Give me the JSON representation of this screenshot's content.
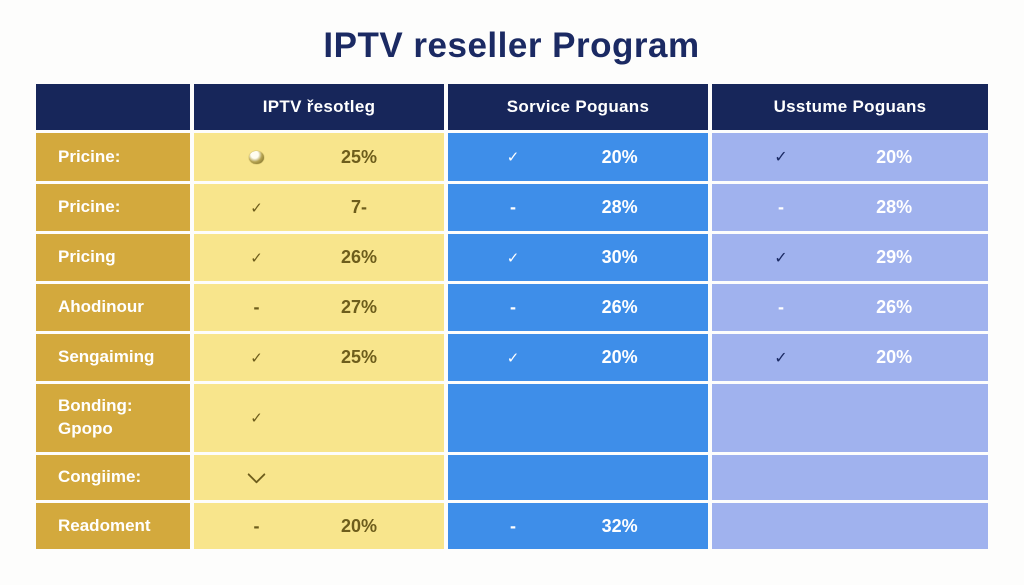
{
  "title": "IPTV reseller Program",
  "colors": {
    "title_text": "#1b2a63",
    "header_bg": "#17265a",
    "label_column_bg": "#d3a93d",
    "reseller_column_bg": "#f8e58c",
    "reseller_column_text": "#6d5d1c",
    "service_column_bg": "#3e8ee9",
    "custom_column_bg": "#a0b2ee",
    "table_text_light": "#ffffff",
    "custom_check": "#1b2a63"
  },
  "chart_data": {
    "type": "table",
    "title": "IPTV reseller Program",
    "columns": [
      "",
      "IPTV řesotleg",
      "Sorvice Poguans",
      "Usstume Poguans"
    ],
    "rows": [
      {
        "label": "Pricine:",
        "cells": [
          {
            "mark": "swirl",
            "value": "25%"
          },
          {
            "mark": "check",
            "value": "20%"
          },
          {
            "mark": "check",
            "value": "20%"
          }
        ]
      },
      {
        "label": "Pricine:",
        "cells": [
          {
            "mark": "check",
            "value": "7-"
          },
          {
            "mark": "dash",
            "value": "28%"
          },
          {
            "mark": "dash",
            "value": "28%"
          }
        ]
      },
      {
        "label": "Pricing",
        "cells": [
          {
            "mark": "check",
            "value": "26%"
          },
          {
            "mark": "check",
            "value": "30%"
          },
          {
            "mark": "check",
            "value": "29%"
          }
        ]
      },
      {
        "label": "Ahodinour",
        "cells": [
          {
            "mark": "dash",
            "value": "27%"
          },
          {
            "mark": "dash",
            "value": "26%"
          },
          {
            "mark": "dash",
            "value": "26%"
          }
        ]
      },
      {
        "label": "Sengaiming",
        "cells": [
          {
            "mark": "check",
            "value": "25%"
          },
          {
            "mark": "check",
            "value": "20%"
          },
          {
            "mark": "check",
            "value": "20%"
          }
        ]
      },
      {
        "label": "Bonding:\nGpopo",
        "cells": [
          {
            "mark": "check",
            "value": ""
          },
          {
            "mark": "none",
            "value": ""
          },
          {
            "mark": "none",
            "value": ""
          }
        ]
      },
      {
        "label": "Congiime:",
        "cells": [
          {
            "mark": "chevron",
            "value": ""
          },
          {
            "mark": "none",
            "value": ""
          },
          {
            "mark": "none",
            "value": ""
          }
        ]
      },
      {
        "label": "Readoment",
        "cells": [
          {
            "mark": "dash",
            "value": "20%"
          },
          {
            "mark": "dash",
            "value": "32%"
          },
          {
            "mark": "none",
            "value": ""
          }
        ]
      }
    ]
  }
}
